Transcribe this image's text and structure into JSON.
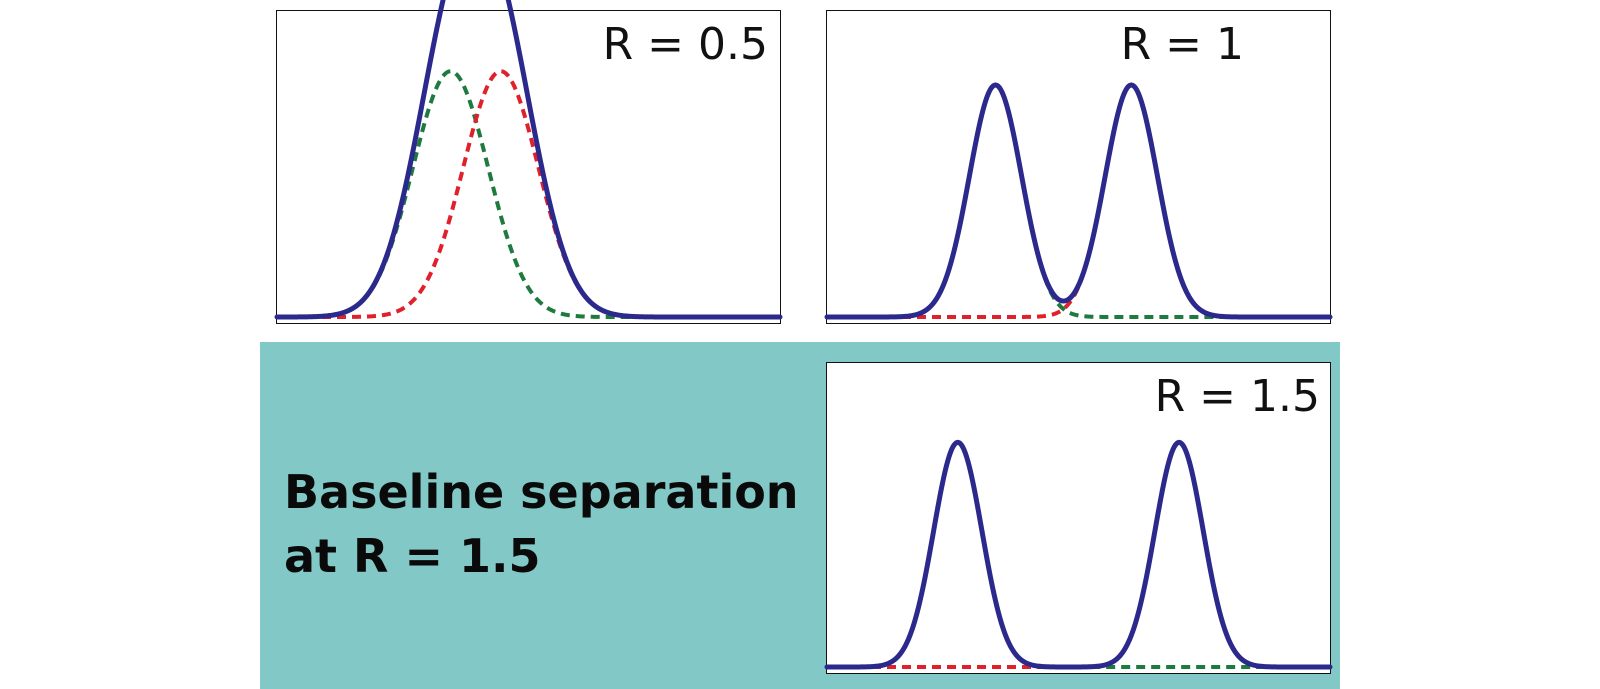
{
  "caption": {
    "line1": "Baseline separation",
    "line2": "at R = 1.5"
  },
  "colors": {
    "sum_curve": "#2b2a8c",
    "peak_a": "#1f7a3e",
    "peak_b": "#e0202a",
    "band": "#82c8c6"
  },
  "chart_data": [
    {
      "type": "line",
      "label": "R = 0.5",
      "resolution": 0.5,
      "xlim": [
        0,
        10
      ],
      "ylim": [
        0,
        1.18
      ],
      "series": [
        {
          "id": "peak_a",
          "center": 3.45,
          "sigma": 0.75,
          "height": 1.0,
          "style": "dashed"
        },
        {
          "id": "peak_b",
          "center": 4.45,
          "sigma": 0.75,
          "height": 1.0,
          "style": "dashed"
        },
        {
          "id": "sum",
          "style": "solid"
        }
      ]
    },
    {
      "type": "line",
      "label": "R = 1",
      "resolution": 1,
      "xlim": [
        0,
        10
      ],
      "ylim": [
        0,
        1.0
      ],
      "series": [
        {
          "id": "peak_a",
          "center": 3.35,
          "sigma": 0.52,
          "height": 0.8,
          "style": "dashed"
        },
        {
          "id": "peak_b",
          "center": 6.05,
          "sigma": 0.52,
          "height": 0.8,
          "style": "dashed"
        },
        {
          "id": "sum",
          "style": "solid"
        }
      ]
    },
    {
      "type": "line",
      "label": "R = 1.5",
      "resolution": 1.5,
      "xlim": [
        0,
        10
      ],
      "ylim": [
        0,
        1.0
      ],
      "series": [
        {
          "id": "peak_a",
          "center": 2.6,
          "sigma": 0.48,
          "height": 0.78,
          "style": "dashed"
        },
        {
          "id": "peak_b",
          "center": 7.0,
          "sigma": 0.48,
          "height": 0.78,
          "style": "dashed"
        },
        {
          "id": "sum",
          "style": "solid"
        }
      ]
    }
  ]
}
